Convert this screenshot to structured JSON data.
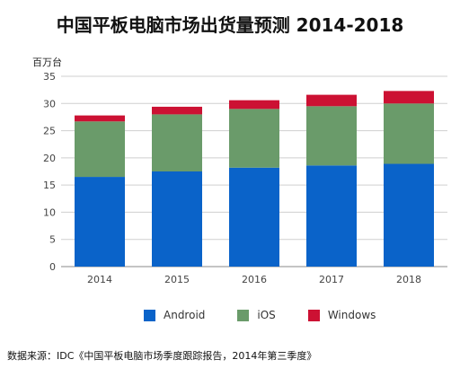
{
  "chart_data": {
    "type": "bar",
    "stacked": true,
    "title": "中国平板电脑市场出货量预测 2014-2018",
    "unit_label": "百万台",
    "categories": [
      "2014",
      "2015",
      "2016",
      "2017",
      "2018"
    ],
    "series": [
      {
        "name": "Android",
        "values": [
          16.5,
          17.5,
          18.2,
          18.6,
          18.9
        ],
        "color": "#0a63c9"
      },
      {
        "name": "iOS",
        "values": [
          10.2,
          10.5,
          10.8,
          10.9,
          11.1
        ],
        "color": "#6a9b6a"
      },
      {
        "name": "Windows",
        "values": [
          1.1,
          1.4,
          1.6,
          2.1,
          2.3
        ],
        "color": "#cc1133"
      }
    ],
    "ylim": [
      0,
      35
    ],
    "yticks": [
      0,
      5,
      10,
      15,
      20,
      25,
      30,
      35
    ],
    "grid": true,
    "legend_position": "bottom"
  },
  "source_note": "数据来源：IDC《中国平板电脑市场季度跟踪报告，2014年第三季度》"
}
